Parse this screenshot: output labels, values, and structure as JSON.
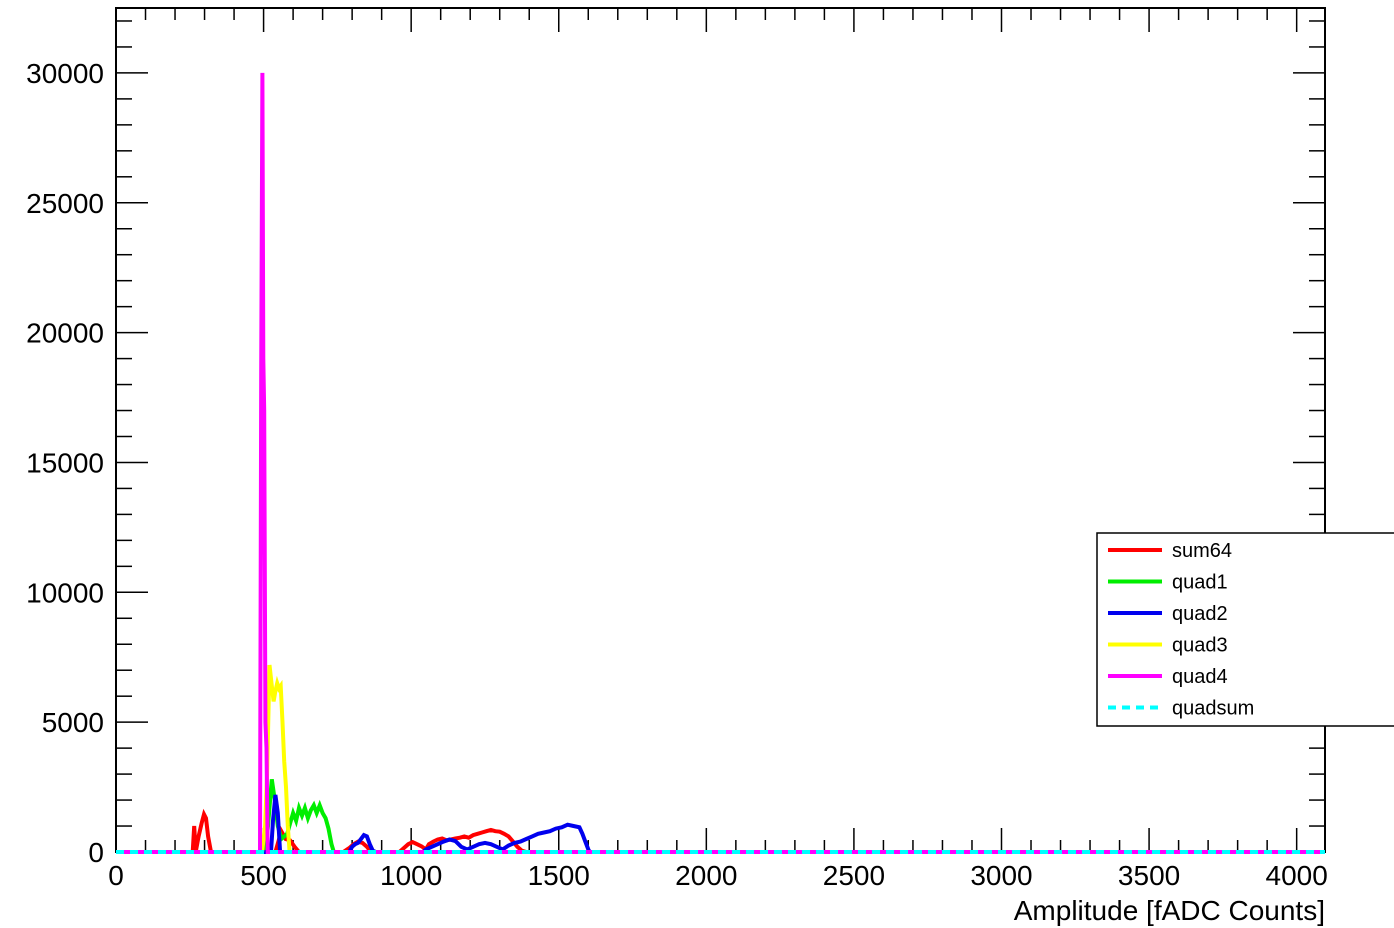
{
  "chart_data": {
    "type": "line",
    "title": "",
    "xlabel": "Amplitude [fADC Counts]",
    "ylabel": "",
    "xlim": [
      0,
      4096
    ],
    "ylim": [
      0,
      32500
    ],
    "x_ticks": [
      "0",
      "500",
      "1000",
      "1500",
      "2000",
      "2500",
      "3000",
      "3500",
      "4000"
    ],
    "y_ticks": [
      "0",
      "5000",
      "10000",
      "15000",
      "20000",
      "25000",
      "30000"
    ],
    "grid": false,
    "legend_position": "right",
    "series": [
      {
        "name": "sum64",
        "color": "#ff0000",
        "dashed": false,
        "points": [
          [
            0,
            0
          ],
          [
            260,
            0
          ],
          [
            265,
            1000
          ],
          [
            270,
            0
          ],
          [
            280,
            600
          ],
          [
            290,
            1100
          ],
          [
            298,
            1450
          ],
          [
            305,
            1300
          ],
          [
            312,
            600
          ],
          [
            322,
            0
          ],
          [
            490,
            0
          ],
          [
            540,
            0
          ],
          [
            560,
            800
          ],
          [
            575,
            500
          ],
          [
            590,
            450
          ],
          [
            605,
            200
          ],
          [
            620,
            0
          ],
          [
            770,
            0
          ],
          [
            790,
            150
          ],
          [
            805,
            300
          ],
          [
            820,
            400
          ],
          [
            835,
            350
          ],
          [
            850,
            200
          ],
          [
            860,
            60
          ],
          [
            880,
            0
          ],
          [
            960,
            0
          ],
          [
            975,
            150
          ],
          [
            990,
            300
          ],
          [
            1005,
            380
          ],
          [
            1020,
            300
          ],
          [
            1035,
            220
          ],
          [
            1050,
            100
          ],
          [
            1060,
            300
          ],
          [
            1075,
            400
          ],
          [
            1090,
            480
          ],
          [
            1105,
            520
          ],
          [
            1120,
            450
          ],
          [
            1135,
            480
          ],
          [
            1150,
            520
          ],
          [
            1165,
            550
          ],
          [
            1180,
            600
          ],
          [
            1195,
            550
          ],
          [
            1210,
            650
          ],
          [
            1225,
            700
          ],
          [
            1240,
            750
          ],
          [
            1255,
            800
          ],
          [
            1270,
            850
          ],
          [
            1285,
            800
          ],
          [
            1300,
            780
          ],
          [
            1315,
            700
          ],
          [
            1330,
            600
          ],
          [
            1345,
            400
          ],
          [
            1360,
            200
          ],
          [
            1375,
            50
          ],
          [
            1390,
            0
          ],
          [
            4096,
            0
          ]
        ]
      },
      {
        "name": "quad1",
        "color": "#00ee00",
        "dashed": false,
        "points": [
          [
            0,
            0
          ],
          [
            505,
            0
          ],
          [
            515,
            1000
          ],
          [
            528,
            2800
          ],
          [
            538,
            2000
          ],
          [
            548,
            1000
          ],
          [
            560,
            500
          ],
          [
            570,
            600
          ],
          [
            580,
            700
          ],
          [
            590,
            1100
          ],
          [
            600,
            1500
          ],
          [
            610,
            1200
          ],
          [
            620,
            1700
          ],
          [
            630,
            1400
          ],
          [
            640,
            1700
          ],
          [
            650,
            1300
          ],
          [
            660,
            1600
          ],
          [
            670,
            1800
          ],
          [
            680,
            1500
          ],
          [
            690,
            1800
          ],
          [
            700,
            1500
          ],
          [
            710,
            1300
          ],
          [
            720,
            900
          ],
          [
            730,
            300
          ],
          [
            738,
            0
          ],
          [
            4096,
            0
          ]
        ]
      },
      {
        "name": "quad2",
        "color": "#0000ee",
        "dashed": false,
        "points": [
          [
            0,
            0
          ],
          [
            525,
            0
          ],
          [
            532,
            1200
          ],
          [
            540,
            2200
          ],
          [
            548,
            1500
          ],
          [
            556,
            0
          ],
          [
            790,
            0
          ],
          [
            800,
            200
          ],
          [
            810,
            300
          ],
          [
            820,
            350
          ],
          [
            830,
            500
          ],
          [
            840,
            650
          ],
          [
            850,
            600
          ],
          [
            860,
            300
          ],
          [
            870,
            50
          ],
          [
            880,
            0
          ],
          [
            1040,
            0
          ],
          [
            1050,
            100
          ],
          [
            1070,
            200
          ],
          [
            1090,
            300
          ],
          [
            1110,
            400
          ],
          [
            1130,
            480
          ],
          [
            1150,
            420
          ],
          [
            1170,
            200
          ],
          [
            1190,
            100
          ],
          [
            1210,
            200
          ],
          [
            1230,
            300
          ],
          [
            1250,
            350
          ],
          [
            1270,
            300
          ],
          [
            1290,
            200
          ],
          [
            1310,
            100
          ],
          [
            1330,
            250
          ],
          [
            1350,
            350
          ],
          [
            1370,
            400
          ],
          [
            1390,
            500
          ],
          [
            1410,
            600
          ],
          [
            1430,
            700
          ],
          [
            1450,
            750
          ],
          [
            1470,
            800
          ],
          [
            1490,
            900
          ],
          [
            1510,
            950
          ],
          [
            1530,
            1050
          ],
          [
            1550,
            1000
          ],
          [
            1570,
            950
          ],
          [
            1580,
            700
          ],
          [
            1590,
            400
          ],
          [
            1600,
            100
          ],
          [
            1605,
            0
          ],
          [
            4096,
            0
          ]
        ]
      },
      {
        "name": "quad3",
        "color": "#ffff00",
        "dashed": false,
        "points": [
          [
            0,
            0
          ],
          [
            495,
            0
          ],
          [
            505,
            1000
          ],
          [
            512,
            3000
          ],
          [
            520,
            7200
          ],
          [
            528,
            6400
          ],
          [
            534,
            5800
          ],
          [
            540,
            6200
          ],
          [
            546,
            6500
          ],
          [
            552,
            6300
          ],
          [
            558,
            6400
          ],
          [
            564,
            5000
          ],
          [
            570,
            3500
          ],
          [
            576,
            2500
          ],
          [
            582,
            1000
          ],
          [
            588,
            0
          ],
          [
            4096,
            0
          ]
        ]
      },
      {
        "name": "quad4",
        "color": "#ff00ff",
        "dashed": false,
        "points": [
          [
            0,
            0
          ],
          [
            488,
            0
          ],
          [
            492,
            18500
          ],
          [
            496,
            30000
          ],
          [
            499,
            19000
          ],
          [
            502,
            17000
          ],
          [
            506,
            5000
          ],
          [
            510,
            4000
          ],
          [
            514,
            0
          ],
          [
            4096,
            0
          ]
        ]
      },
      {
        "name": "quadsum",
        "color": "#00ffff",
        "dashed": true,
        "points": [
          [
            0,
            0
          ],
          [
            4096,
            0
          ]
        ]
      }
    ]
  }
}
